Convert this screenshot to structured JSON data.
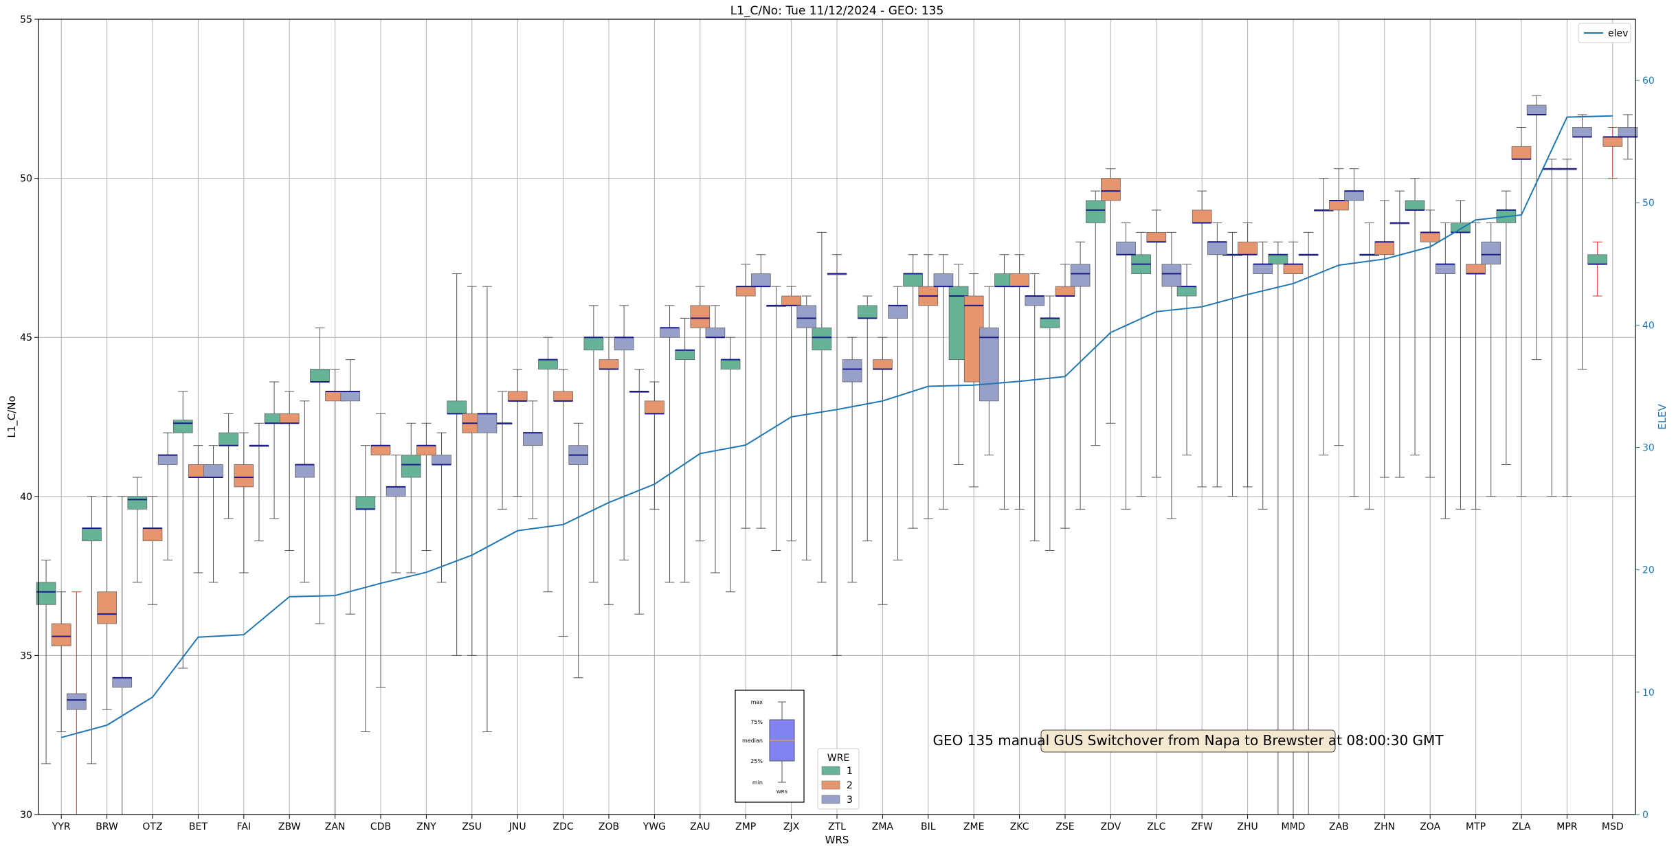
{
  "chart_data": {
    "type": "box",
    "title": "L1_C/No: Tue 11/12/2024 - GEO: 135",
    "xlabel": "WRS",
    "ylabel": "L1_C/No",
    "y2label": "ELEV",
    "ylim": [
      30,
      55
    ],
    "y2lim": [
      0,
      65
    ],
    "yticks": [
      30,
      35,
      40,
      45,
      50,
      55
    ],
    "y2ticks": [
      0,
      10,
      20,
      30,
      40,
      50,
      60
    ],
    "grid": true,
    "categories": [
      "YYR",
      "BRW",
      "OTZ",
      "BET",
      "FAI",
      "ZBW",
      "ZAN",
      "CDB",
      "ZNY",
      "ZSU",
      "JNU",
      "ZDC",
      "ZOB",
      "YWG",
      "ZAU",
      "ZMP",
      "ZJX",
      "ZTL",
      "ZMA",
      "BIL",
      "ZME",
      "ZKC",
      "ZSE",
      "ZDV",
      "ZLC",
      "ZFW",
      "ZHU",
      "MMD",
      "ZAB",
      "ZHN",
      "ZOA",
      "MTP",
      "ZLA",
      "MPR",
      "MSD"
    ],
    "series": [
      {
        "name": "1",
        "color": "#66b398",
        "values": [
          {
            "min": 31.6,
            "q1": 36.6,
            "median": 37.0,
            "q3": 37.3,
            "max": 38.0
          },
          {
            "min": 31.6,
            "q1": 38.6,
            "median": 39.0,
            "q3": 39.0,
            "max": 40.0
          },
          {
            "min": 37.3,
            "q1": 39.6,
            "median": 39.9,
            "q3": 40.0,
            "max": 40.6
          },
          {
            "min": 34.6,
            "q1": 42.0,
            "median": 42.3,
            "q3": 42.4,
            "max": 43.3
          },
          {
            "min": 39.3,
            "q1": 41.6,
            "median": 41.6,
            "q3": 42.0,
            "max": 42.6
          },
          {
            "min": 39.3,
            "q1": 42.3,
            "median": 42.3,
            "q3": 42.6,
            "max": 43.6
          },
          {
            "min": 36.0,
            "q1": 43.6,
            "median": 43.6,
            "q3": 44.0,
            "max": 45.3
          },
          {
            "min": 32.6,
            "q1": 39.6,
            "median": 39.6,
            "q3": 40.0,
            "max": 41.6
          },
          {
            "min": 37.6,
            "q1": 40.6,
            "median": 41.0,
            "q3": 41.3,
            "max": 42.3
          },
          {
            "min": 35.0,
            "q1": 42.6,
            "median": 42.6,
            "q3": 43.0,
            "max": 47.0
          },
          {
            "min": 39.6,
            "q1": 42.3,
            "median": 42.3,
            "q3": 42.3,
            "max": 43.3
          },
          {
            "min": 37.0,
            "q1": 44.0,
            "median": 44.3,
            "q3": 44.3,
            "max": 45.0
          },
          {
            "min": 37.3,
            "q1": 44.6,
            "median": 45.0,
            "q3": 45.0,
            "max": 46.0
          },
          {
            "min": 36.3,
            "q1": 43.3,
            "median": 43.3,
            "q3": 43.3,
            "max": 44.0
          },
          {
            "min": 37.3,
            "q1": 44.3,
            "median": 44.6,
            "q3": 44.6,
            "max": 45.6
          },
          {
            "min": 37.0,
            "q1": 44.0,
            "median": 44.3,
            "q3": 44.3,
            "max": 45.0
          },
          {
            "min": 38.3,
            "q1": 46.0,
            "median": 46.0,
            "q3": 46.0,
            "max": 46.6
          },
          {
            "min": 37.3,
            "q1": 44.6,
            "median": 45.0,
            "q3": 45.3,
            "max": 48.3
          },
          {
            "min": 38.6,
            "q1": 45.6,
            "median": 45.6,
            "q3": 46.0,
            "max": 46.3
          },
          {
            "min": 39.0,
            "q1": 46.6,
            "median": 47.0,
            "q3": 47.0,
            "max": 47.6
          },
          {
            "min": 41.0,
            "q1": 44.3,
            "median": 46.3,
            "q3": 46.6,
            "max": 47.3
          },
          {
            "min": 39.6,
            "q1": 46.6,
            "median": 46.6,
            "q3": 47.0,
            "max": 47.6
          },
          {
            "min": 38.3,
            "q1": 45.3,
            "median": 45.6,
            "q3": 45.6,
            "max": 46.3
          },
          {
            "min": 41.6,
            "q1": 48.6,
            "median": 49.0,
            "q3": 49.3,
            "max": 49.6
          },
          {
            "min": 40.0,
            "q1": 47.0,
            "median": 47.3,
            "q3": 47.6,
            "max": 48.3
          },
          {
            "min": 41.3,
            "q1": 46.3,
            "median": 46.6,
            "q3": 46.6,
            "max": 47.3
          },
          {
            "min": 40.0,
            "q1": 47.6,
            "median": 47.6,
            "q3": 47.6,
            "max": 48.3
          },
          {
            "min": 20.0,
            "q1": 47.3,
            "median": 47.6,
            "q3": 47.6,
            "max": 48.0
          },
          {
            "min": 41.3,
            "q1": 49.0,
            "median": 49.0,
            "q3": 49.0,
            "max": 50.0
          },
          {
            "min": 39.6,
            "q1": 47.6,
            "median": 47.6,
            "q3": 47.6,
            "max": 48.6
          },
          {
            "min": 41.3,
            "q1": 49.0,
            "median": 49.0,
            "q3": 49.3,
            "max": 50.0
          },
          {
            "min": 39.6,
            "q1": 48.3,
            "median": 48.3,
            "q3": 48.6,
            "max": 49.3
          },
          {
            "min": 41.0,
            "q1": 48.6,
            "median": 49.0,
            "q3": 49.0,
            "max": 49.6
          },
          {
            "min": 40.0,
            "q1": 50.3,
            "median": 50.3,
            "q3": 50.3,
            "max": 50.6
          },
          {
            "min": 46.3,
            "q1": 47.3,
            "median": 47.3,
            "q3": 47.6,
            "max": 48.0,
            "outlier": true
          }
        ]
      },
      {
        "name": "2",
        "color": "#e6956e",
        "values": [
          {
            "min": 32.6,
            "q1": 35.3,
            "median": 35.6,
            "q3": 36.0,
            "max": 37.0
          },
          {
            "min": 33.3,
            "q1": 36.0,
            "median": 36.3,
            "q3": 37.0,
            "max": 40.0
          },
          {
            "min": 36.6,
            "q1": 38.6,
            "median": 39.0,
            "q3": 39.0,
            "max": 40.0
          },
          {
            "min": 37.6,
            "q1": 40.6,
            "median": 40.6,
            "q3": 41.0,
            "max": 41.6
          },
          {
            "min": 37.6,
            "q1": 40.3,
            "median": 40.6,
            "q3": 41.0,
            "max": 42.0
          },
          {
            "min": 38.3,
            "q1": 42.3,
            "median": 42.3,
            "q3": 42.6,
            "max": 43.3
          },
          {
            "min": 20.0,
            "q1": 43.0,
            "median": 43.3,
            "q3": 43.3,
            "max": 44.0
          },
          {
            "min": 34.0,
            "q1": 41.3,
            "median": 41.6,
            "q3": 41.6,
            "max": 42.6
          },
          {
            "min": 38.3,
            "q1": 41.3,
            "median": 41.6,
            "q3": 41.6,
            "max": 42.3
          },
          {
            "min": 35.0,
            "q1": 42.0,
            "median": 42.3,
            "q3": 42.6,
            "max": 46.6
          },
          {
            "min": 40.0,
            "q1": 43.0,
            "median": 43.0,
            "q3": 43.3,
            "max": 44.0
          },
          {
            "min": 35.6,
            "q1": 43.0,
            "median": 43.0,
            "q3": 43.3,
            "max": 44.0
          },
          {
            "min": 36.6,
            "q1": 44.0,
            "median": 44.0,
            "q3": 44.3,
            "max": 45.0
          },
          {
            "min": 39.6,
            "q1": 42.6,
            "median": 42.6,
            "q3": 43.0,
            "max": 43.6
          },
          {
            "min": 38.6,
            "q1": 45.3,
            "median": 45.6,
            "q3": 46.0,
            "max": 46.6
          },
          {
            "min": 39.0,
            "q1": 46.3,
            "median": 46.6,
            "q3": 46.6,
            "max": 47.3
          },
          {
            "min": 38.6,
            "q1": 46.0,
            "median": 46.0,
            "q3": 46.3,
            "max": 46.6
          },
          {
            "min": 35.0,
            "q1": 47.0,
            "median": 47.0,
            "q3": 47.0,
            "max": 47.6
          },
          {
            "min": 36.6,
            "q1": 44.0,
            "median": 44.0,
            "q3": 44.3,
            "max": 45.0
          },
          {
            "min": 39.3,
            "q1": 46.0,
            "median": 46.3,
            "q3": 46.6,
            "max": 47.6
          },
          {
            "min": 40.3,
            "q1": 43.6,
            "median": 46.0,
            "q3": 46.3,
            "max": 47.0
          },
          {
            "min": 39.6,
            "q1": 46.6,
            "median": 46.6,
            "q3": 47.0,
            "max": 47.6
          },
          {
            "min": 39.0,
            "q1": 46.3,
            "median": 46.3,
            "q3": 46.6,
            "max": 47.3
          },
          {
            "min": 42.3,
            "q1": 49.3,
            "median": 49.6,
            "q3": 50.0,
            "max": 50.3
          },
          {
            "min": 40.6,
            "q1": 48.0,
            "median": 48.0,
            "q3": 48.3,
            "max": 49.0
          },
          {
            "min": 40.3,
            "q1": 48.6,
            "median": 48.6,
            "q3": 49.0,
            "max": 49.6
          },
          {
            "min": 40.3,
            "q1": 47.6,
            "median": 47.6,
            "q3": 48.0,
            "max": 48.6
          },
          {
            "min": 20.0,
            "q1": 47.0,
            "median": 47.3,
            "q3": 47.3,
            "max": 48.0
          },
          {
            "min": 41.6,
            "q1": 49.0,
            "median": 49.3,
            "q3": 49.3,
            "max": 50.3
          },
          {
            "min": 40.6,
            "q1": 47.6,
            "median": 48.0,
            "q3": 48.0,
            "max": 49.3
          },
          {
            "min": 40.6,
            "q1": 48.0,
            "median": 48.3,
            "q3": 48.3,
            "max": 49.0
          },
          {
            "min": 39.6,
            "q1": 47.0,
            "median": 47.0,
            "q3": 47.3,
            "max": 48.6
          },
          {
            "min": 40.0,
            "q1": 50.6,
            "median": 50.6,
            "q3": 51.0,
            "max": 51.6
          },
          {
            "min": 40.0,
            "q1": 50.3,
            "median": 50.3,
            "q3": 50.3,
            "max": 50.6
          },
          {
            "min": 50.0,
            "q1": 51.0,
            "median": 51.3,
            "q3": 51.3,
            "max": 51.6,
            "outlier": true
          }
        ]
      },
      {
        "name": "3",
        "color": "#96a0c8",
        "values": [
          {
            "min": 30.0,
            "q1": 33.3,
            "median": 33.6,
            "q3": 33.8,
            "max": 37.0,
            "outlier": true
          },
          {
            "min": 20.0,
            "q1": 34.0,
            "median": 34.3,
            "q3": 34.3,
            "max": 40.0
          },
          {
            "min": 38.0,
            "q1": 41.0,
            "median": 41.3,
            "q3": 41.3,
            "max": 42.0
          },
          {
            "min": 37.3,
            "q1": 40.6,
            "median": 40.6,
            "q3": 41.0,
            "max": 41.6
          },
          {
            "min": 38.6,
            "q1": 41.6,
            "median": 41.6,
            "q3": 41.6,
            "max": 42.3
          },
          {
            "min": 37.3,
            "q1": 40.6,
            "median": 41.0,
            "q3": 41.0,
            "max": 43.0
          },
          {
            "min": 36.3,
            "q1": 43.0,
            "median": 43.3,
            "q3": 43.3,
            "max": 44.3
          },
          {
            "min": 37.6,
            "q1": 40.0,
            "median": 40.3,
            "q3": 40.3,
            "max": 41.3
          },
          {
            "min": 37.3,
            "q1": 41.0,
            "median": 41.0,
            "q3": 41.3,
            "max": 42.0
          },
          {
            "min": 32.6,
            "q1": 42.0,
            "median": 42.6,
            "q3": 42.6,
            "max": 46.6
          },
          {
            "min": 39.3,
            "q1": 41.6,
            "median": 42.0,
            "q3": 42.0,
            "max": 43.0
          },
          {
            "min": 34.3,
            "q1": 41.0,
            "median": 41.3,
            "q3": 41.6,
            "max": 42.3
          },
          {
            "min": 38.0,
            "q1": 44.6,
            "median": 45.0,
            "q3": 45.0,
            "max": 46.0
          },
          {
            "min": 37.3,
            "q1": 45.0,
            "median": 45.3,
            "q3": 45.3,
            "max": 46.0
          },
          {
            "min": 37.6,
            "q1": 45.0,
            "median": 45.0,
            "q3": 45.3,
            "max": 46.0
          },
          {
            "min": 39.0,
            "q1": 46.6,
            "median": 46.6,
            "q3": 47.0,
            "max": 47.6
          },
          {
            "min": 38.0,
            "q1": 45.3,
            "median": 45.6,
            "q3": 46.0,
            "max": 46.3
          },
          {
            "min": 37.3,
            "q1": 43.6,
            "median": 44.0,
            "q3": 44.3,
            "max": 45.0
          },
          {
            "min": 38.0,
            "q1": 45.6,
            "median": 46.0,
            "q3": 46.0,
            "max": 46.6
          },
          {
            "min": 39.6,
            "q1": 46.6,
            "median": 46.6,
            "q3": 47.0,
            "max": 47.6
          },
          {
            "min": 41.3,
            "q1": 43.0,
            "median": 45.0,
            "q3": 45.3,
            "max": 46.6
          },
          {
            "min": 38.6,
            "q1": 46.0,
            "median": 46.3,
            "q3": 46.3,
            "max": 47.0
          },
          {
            "min": 39.6,
            "q1": 46.6,
            "median": 47.0,
            "q3": 47.3,
            "max": 48.0
          },
          {
            "min": 39.6,
            "q1": 47.6,
            "median": 47.6,
            "q3": 48.0,
            "max": 48.6
          },
          {
            "min": 39.3,
            "q1": 46.6,
            "median": 47.0,
            "q3": 47.3,
            "max": 48.3
          },
          {
            "min": 40.3,
            "q1": 47.6,
            "median": 48.0,
            "q3": 48.0,
            "max": 48.6
          },
          {
            "min": 39.6,
            "q1": 47.0,
            "median": 47.3,
            "q3": 47.3,
            "max": 48.0
          },
          {
            "min": 20.0,
            "q1": 47.6,
            "median": 47.6,
            "q3": 47.6,
            "max": 48.3
          },
          {
            "min": 40.0,
            "q1": 49.3,
            "median": 49.6,
            "q3": 49.6,
            "max": 50.3
          },
          {
            "min": 40.6,
            "q1": 48.6,
            "median": 48.6,
            "q3": 48.6,
            "max": 49.6
          },
          {
            "min": 39.3,
            "q1": 47.0,
            "median": 47.3,
            "q3": 47.3,
            "max": 48.6
          },
          {
            "min": 40.0,
            "q1": 47.3,
            "median": 47.6,
            "q3": 48.0,
            "max": 48.6
          },
          {
            "min": 44.3,
            "q1": 52.0,
            "median": 52.0,
            "q3": 52.3,
            "max": 52.6
          },
          {
            "min": 44.0,
            "q1": 51.3,
            "median": 51.3,
            "q3": 51.6,
            "max": 52.0
          },
          {
            "min": 50.6,
            "q1": 51.3,
            "median": 51.3,
            "q3": 51.6,
            "max": 52.0
          }
        ]
      }
    ],
    "elev_line": {
      "name": "elev",
      "color": "#1f77b4",
      "values": [
        6.3,
        7.3,
        9.6,
        14.5,
        14.7,
        17.8,
        17.9,
        18.9,
        19.8,
        21.2,
        23.2,
        23.7,
        25.5,
        27.0,
        29.5,
        30.2,
        32.5,
        33.1,
        33.8,
        35.0,
        35.1,
        35.4,
        35.8,
        39.4,
        41.1,
        41.5,
        42.5,
        43.4,
        44.9,
        45.4,
        46.4,
        48.6,
        49.0,
        57.0,
        57.1
      ]
    },
    "legend": {
      "title": "WRE",
      "entries": [
        "1",
        "2",
        "3"
      ],
      "placement": "bottom-center"
    },
    "legend_elev": {
      "entries": [
        "elev"
      ],
      "placement": "top-right"
    },
    "annotation": "GEO 135 manual GUS Switchover from Napa to Brewster at 08:00:30 GMT",
    "box_key": {
      "labels": [
        "max",
        "75%",
        "median",
        "25%",
        "min"
      ],
      "xlabel": "WRS"
    }
  }
}
